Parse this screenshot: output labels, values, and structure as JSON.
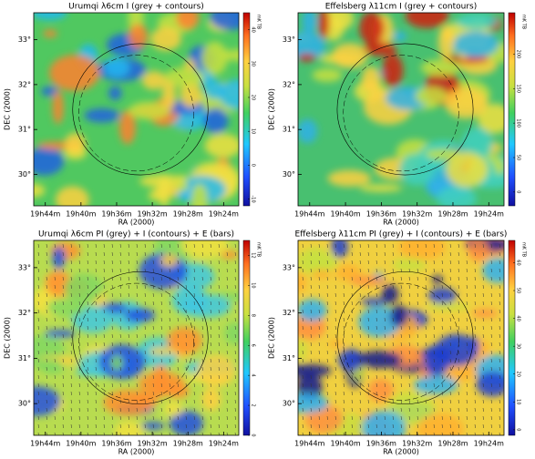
{
  "chart_data": [
    {
      "type": "image",
      "title": "Urumqi λ6cm I (grey + contours)",
      "xlabel": "RA (2000)",
      "ylabel": "DEC (2000)",
      "xlim": [
        45.3,
        22.3
      ],
      "xticks": [
        {
          "value": 44,
          "label": "19h44m"
        },
        {
          "value": 40,
          "label": "19h40m"
        },
        {
          "value": 36,
          "label": "19h36m"
        },
        {
          "value": 32,
          "label": "19h32m"
        },
        {
          "value": 28,
          "label": "19h28m"
        },
        {
          "value": 24,
          "label": "19h24m"
        }
      ],
      "ylim": [
        29.3,
        33.6
      ],
      "yticks": [
        {
          "value": 30,
          "label": "30°"
        },
        {
          "value": 31,
          "label": "31°"
        },
        {
          "value": 32,
          "label": "32°"
        },
        {
          "value": 33,
          "label": "33°"
        }
      ],
      "clim": [
        -12,
        45
      ],
      "cticks": [
        -10,
        0,
        10,
        20,
        30,
        40
      ],
      "clabel": "mK TB"
    },
    {
      "type": "image",
      "title": "Effelsberg λ11cm I (grey + contours)",
      "xlabel": "RA (2000)",
      "ylabel": "DEC (2000)",
      "xlim": [
        45.3,
        22.3
      ],
      "xticks": [
        {
          "value": 44,
          "label": "19h44m"
        },
        {
          "value": 40,
          "label": "19h40m"
        },
        {
          "value": 36,
          "label": "19h36m"
        },
        {
          "value": 32,
          "label": "19h32m"
        },
        {
          "value": 28,
          "label": "19h28m"
        },
        {
          "value": 24,
          "label": "19h24m"
        }
      ],
      "ylim": [
        29.3,
        33.6
      ],
      "yticks": [
        {
          "value": 30,
          "label": "30°"
        },
        {
          "value": 31,
          "label": "31°"
        },
        {
          "value": 32,
          "label": "32°"
        },
        {
          "value": 33,
          "label": "33°"
        }
      ],
      "clim": [
        -20,
        260
      ],
      "cticks": [
        0,
        50,
        100,
        150,
        200
      ],
      "clabel": "mK TB"
    },
    {
      "type": "image",
      "title": "Urumqi λ6cm PI (grey) + I (contours) + E (bars)",
      "xlabel": "RA (2000)",
      "ylabel": "DEC (2000)",
      "xlim": [
        45.3,
        22.3
      ],
      "xticks": [
        {
          "value": 44,
          "label": "19h44m"
        },
        {
          "value": 40,
          "label": "19h40m"
        },
        {
          "value": 36,
          "label": "19h36m"
        },
        {
          "value": 32,
          "label": "19h32m"
        },
        {
          "value": 28,
          "label": "19h28m"
        },
        {
          "value": 24,
          "label": "19h24m"
        }
      ],
      "ylim": [
        29.3,
        33.6
      ],
      "yticks": [
        {
          "value": 30,
          "label": "30°"
        },
        {
          "value": 31,
          "label": "31°"
        },
        {
          "value": 32,
          "label": "32°"
        },
        {
          "value": 33,
          "label": "33°"
        }
      ],
      "clim": [
        0,
        13
      ],
      "cticks": [
        0,
        2,
        4,
        6,
        8,
        10,
        12
      ],
      "clabel": "mK TB"
    },
    {
      "type": "image",
      "title": "Effelsberg λ11cm PI (grey) + I (contours) + E (bars)",
      "xlabel": "RA (2000)",
      "ylabel": "DEC (2000)",
      "xlim": [
        45.3,
        22.3
      ],
      "xticks": [
        {
          "value": 44,
          "label": "19h44m"
        },
        {
          "value": 40,
          "label": "19h40m"
        },
        {
          "value": 36,
          "label": "19h36m"
        },
        {
          "value": 32,
          "label": "19h32m"
        },
        {
          "value": 28,
          "label": "19h28m"
        },
        {
          "value": 24,
          "label": "19h24m"
        }
      ],
      "ylim": [
        29.3,
        33.6
      ],
      "yticks": [
        {
          "value": 30,
          "label": "30°"
        },
        {
          "value": 31,
          "label": "31°"
        },
        {
          "value": 32,
          "label": "32°"
        },
        {
          "value": 33,
          "label": "33°"
        }
      ],
      "clim": [
        -2,
        68
      ],
      "cticks": [
        0,
        10,
        20,
        30,
        40,
        50,
        60
      ],
      "clabel": "mK TB"
    }
  ]
}
